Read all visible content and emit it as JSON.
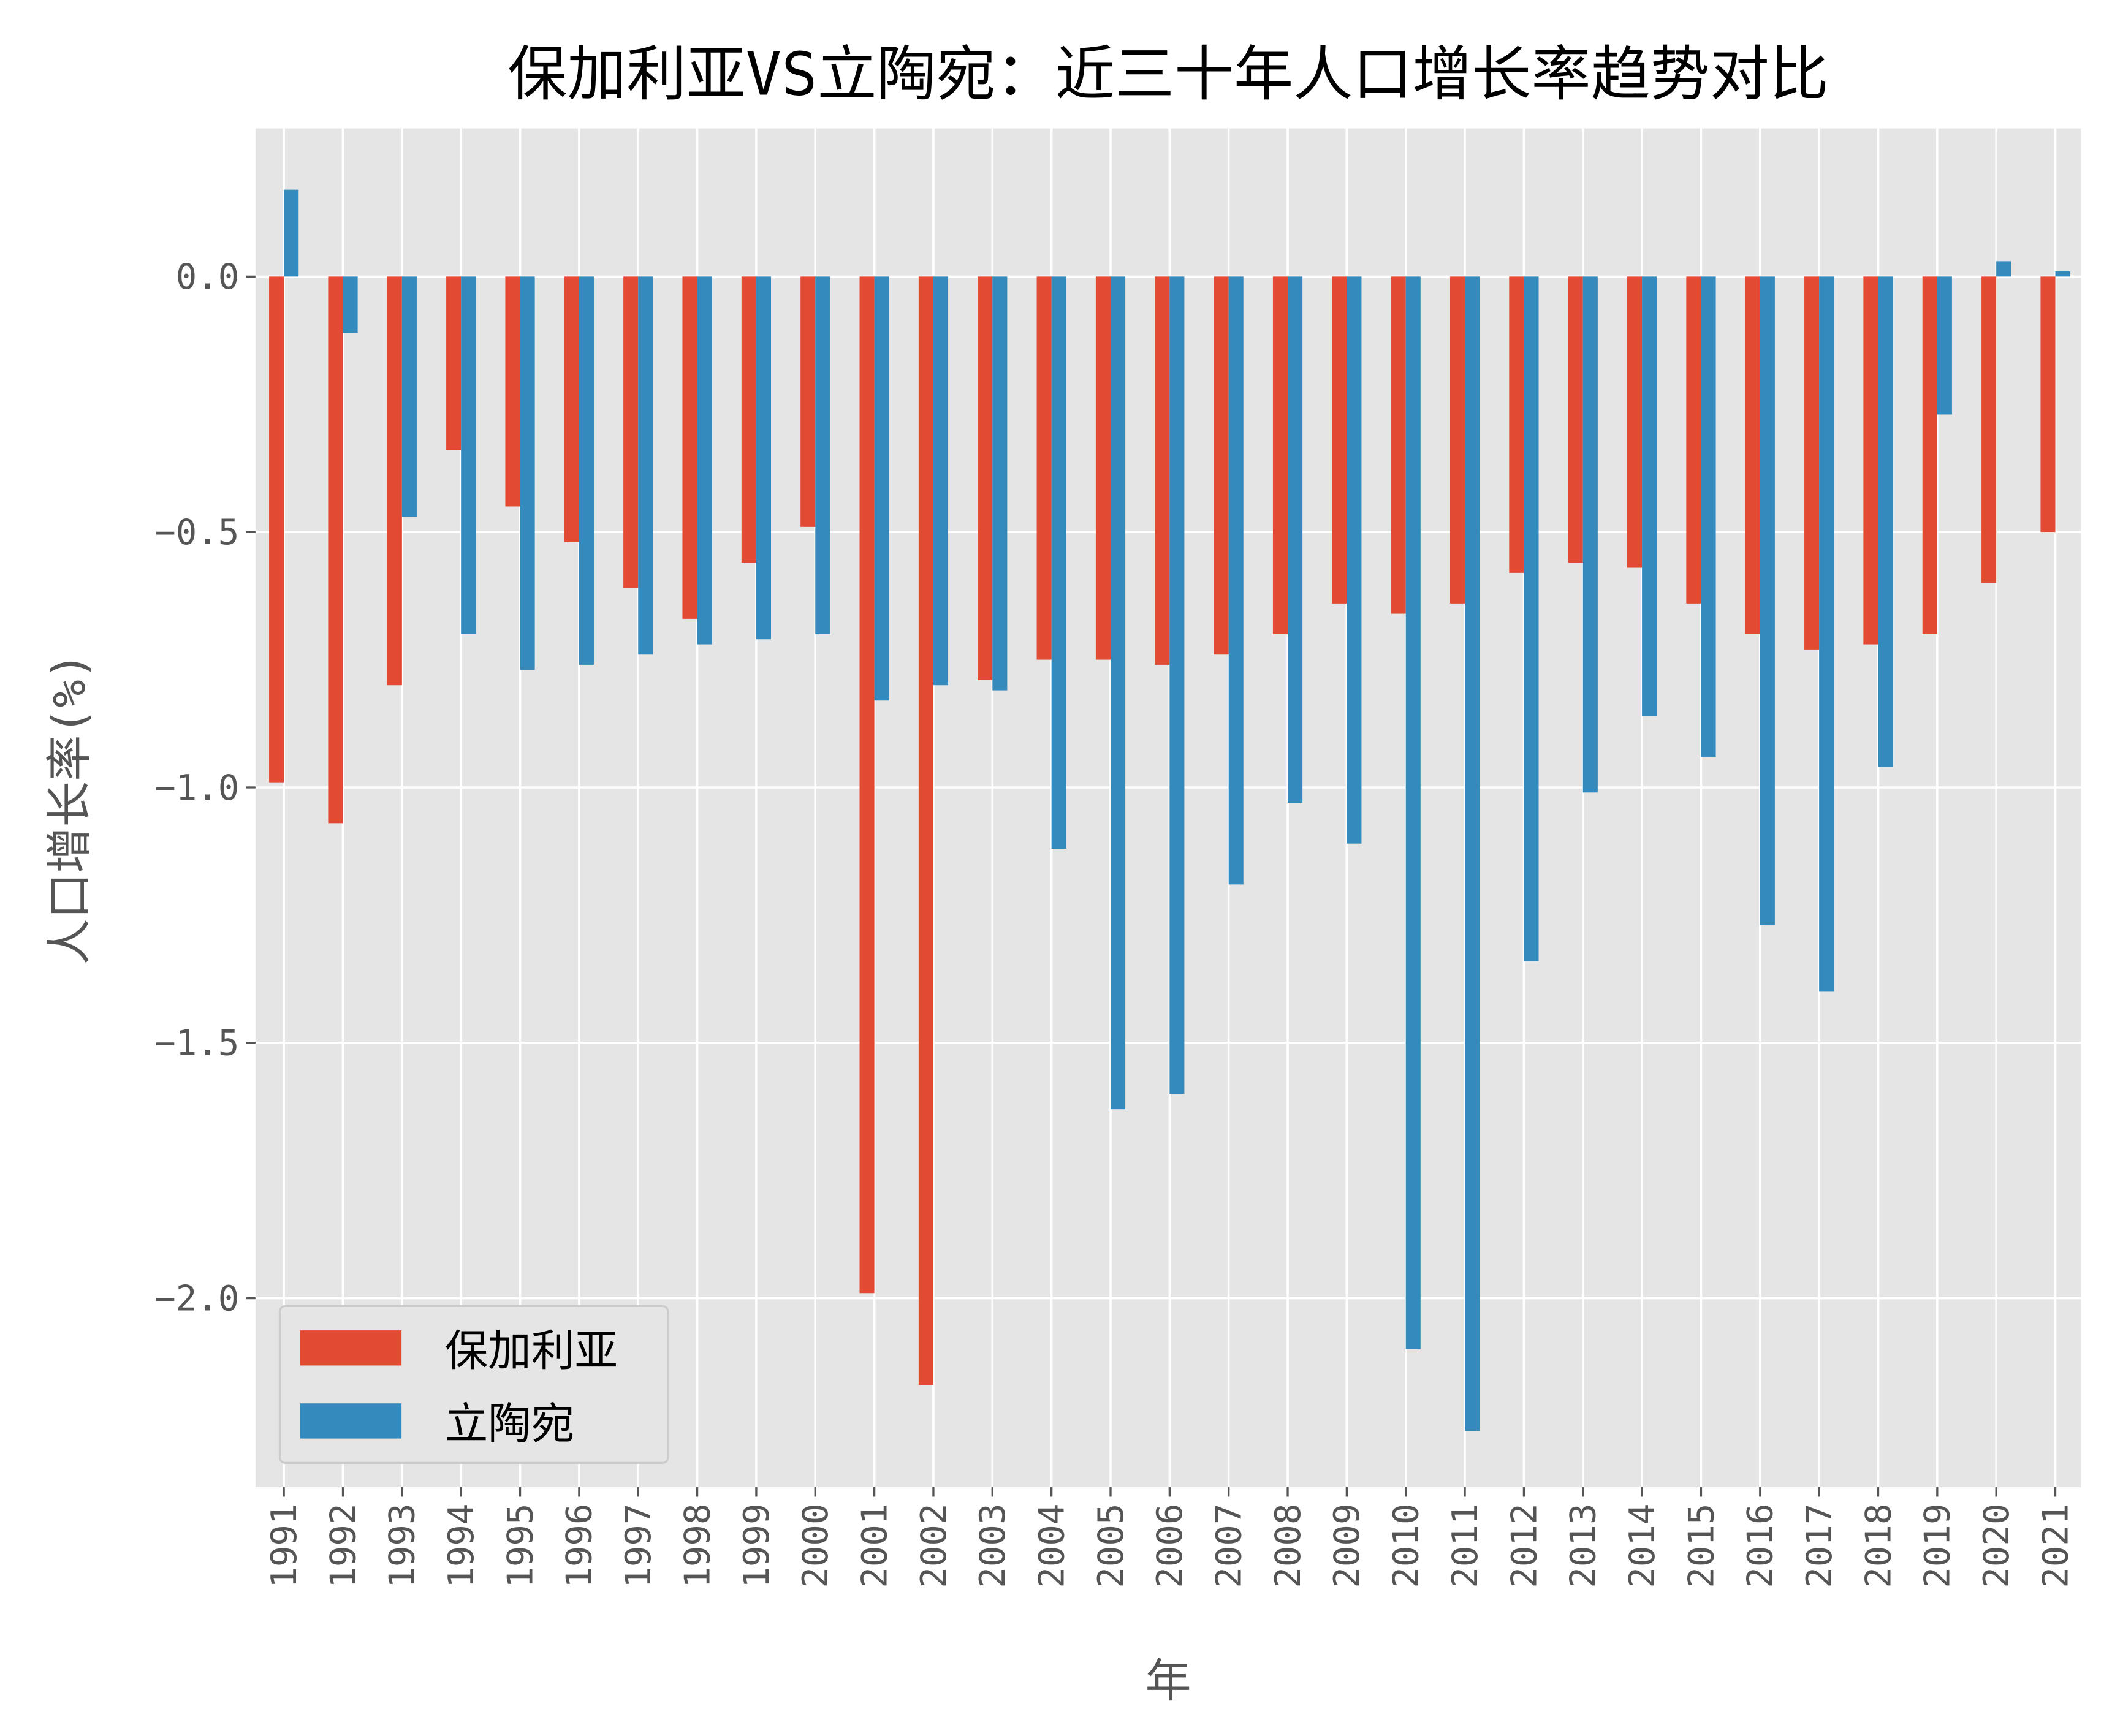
{
  "chart_data": {
    "type": "bar",
    "title": "保加利亚VS立陶宛：近三十年人口增长率趋势对比",
    "xlabel": "年",
    "ylabel": "人口增长率(%)",
    "ylim": [
      -2.37,
      0.29
    ],
    "yticks": [
      0.0,
      -0.5,
      -1.0,
      -1.5,
      -2.0
    ],
    "ytick_labels": [
      "0.0",
      "−0.5",
      "−1.0",
      "−1.5",
      "−2.0"
    ],
    "grid": true,
    "legend_position": "lower-left",
    "categories": [
      "1991",
      "1992",
      "1993",
      "1994",
      "1995",
      "1996",
      "1997",
      "1998",
      "1999",
      "2000",
      "2001",
      "2002",
      "2003",
      "2004",
      "2005",
      "2006",
      "2007",
      "2008",
      "2009",
      "2010",
      "2011",
      "2012",
      "2013",
      "2014",
      "2015",
      "2016",
      "2017",
      "2018",
      "2019",
      "2020",
      "2021"
    ],
    "series": [
      {
        "name": "保加利亚",
        "color": "#E24A33",
        "values": [
          -0.99,
          -1.07,
          -0.8,
          -0.34,
          -0.45,
          -0.52,
          -0.61,
          -0.67,
          -0.56,
          -0.49,
          -1.99,
          -2.17,
          -0.79,
          -0.75,
          -0.75,
          -0.76,
          -0.74,
          -0.7,
          -0.64,
          -0.66,
          -0.64,
          -0.58,
          -0.56,
          -0.57,
          -0.64,
          -0.7,
          -0.73,
          -0.72,
          -0.7,
          -0.6,
          -0.5
        ]
      },
      {
        "name": "立陶宛",
        "color": "#348ABD",
        "values": [
          0.17,
          -0.11,
          -0.47,
          -0.7,
          -0.77,
          -0.76,
          -0.74,
          -0.72,
          -0.71,
          -0.7,
          -0.83,
          -0.8,
          -0.81,
          -1.12,
          -1.63,
          -1.6,
          -1.19,
          -1.03,
          -1.11,
          -2.1,
          -2.26,
          -1.34,
          -1.01,
          -0.86,
          -0.94,
          -1.27,
          -1.4,
          -0.96,
          -0.27,
          0.03,
          0.01
        ]
      }
    ]
  }
}
